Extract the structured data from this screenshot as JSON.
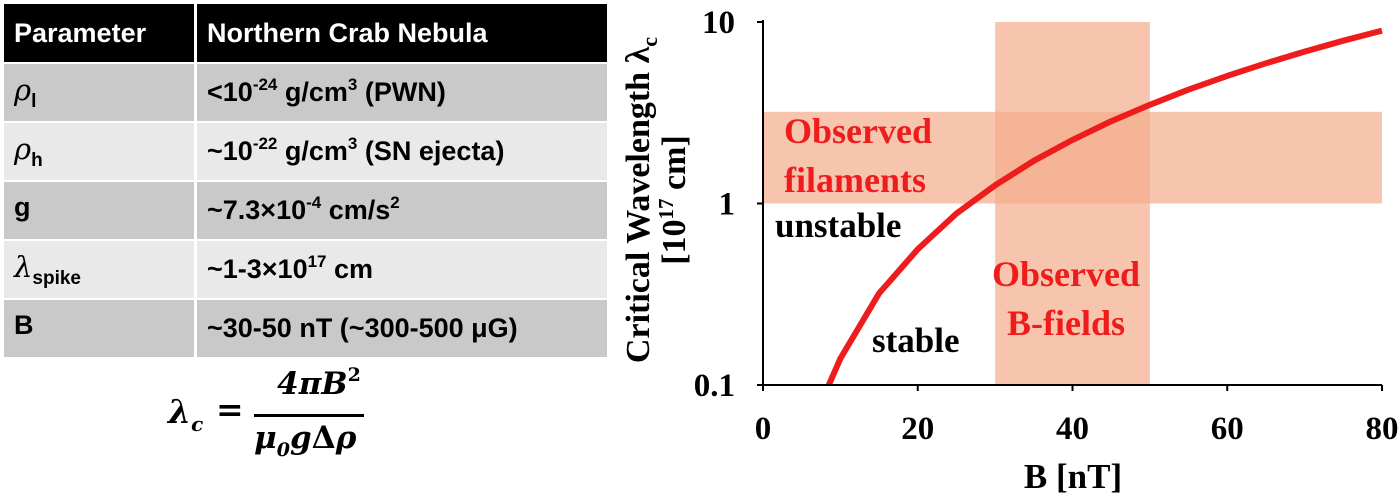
{
  "table": {
    "headers": [
      "Parameter",
      "Northern Crab Nebula"
    ],
    "rows": [
      {
        "symbol": "ρ",
        "subscript": "l",
        "value_prefix": "<10",
        "value_exp": "-24",
        "value_mid": " g/cm",
        "value_exp2": "3",
        "value_suffix": " (PWN)"
      },
      {
        "symbol": "ρ",
        "subscript": "h",
        "value_prefix": "~10",
        "value_exp": "-22",
        "value_mid": " g/cm",
        "value_exp2": "3",
        "value_suffix": " (SN ejecta)"
      },
      {
        "symbol": "g",
        "subscript": "",
        "value_prefix": "~7.3×10",
        "value_exp": "-4",
        "value_mid": " cm/s",
        "value_exp2": "2",
        "value_suffix": ""
      },
      {
        "symbol": "λ",
        "subscript": "spike",
        "value_prefix": "~1-3×10",
        "value_exp": "17",
        "value_mid": " cm",
        "value_exp2": "",
        "value_suffix": ""
      },
      {
        "symbol": "B",
        "subscript": "",
        "value_prefix": "~30-50 nT (~300-500 μG)",
        "value_exp": "",
        "value_mid": "",
        "value_exp2": "",
        "value_suffix": ""
      }
    ]
  },
  "formula": {
    "lhs": "λ",
    "lhs_sub": "c",
    "equals": "=",
    "numerator": "4πB",
    "numerator_exp": "2",
    "denominator_a": "μ",
    "denominator_sub": "0",
    "denominator_b": "g",
    "denominator_delta": "Δ",
    "denominator_c": "ρ"
  },
  "chart_data": {
    "type": "line",
    "xlabel": "B [nT]",
    "ylabel_line1": "Critical Wavelength λ",
    "ylabel_sub": "c",
    "ylabel_line2_prefix": "[10",
    "ylabel_line2_exp": "17",
    "ylabel_line2_suffix": " cm]",
    "xlim": [
      0,
      80
    ],
    "ylim": [
      0.1,
      10
    ],
    "yscale": "log",
    "xticks": [
      0,
      20,
      40,
      60,
      80
    ],
    "xtick_labels": [
      "0",
      "20",
      "40",
      "60",
      "80"
    ],
    "yticks": [
      0.1,
      1,
      10
    ],
    "ytick_labels": [
      "0.1",
      "1",
      "10"
    ],
    "grid": false,
    "series": [
      {
        "color": "#ee1c1c",
        "x": [
          8.5,
          10,
          15,
          20,
          25,
          30,
          35,
          40,
          45,
          50,
          55,
          60,
          65,
          70,
          75,
          80
        ],
        "y": [
          0.1,
          0.14,
          0.32,
          0.56,
          0.88,
          1.26,
          1.72,
          2.24,
          2.84,
          3.5,
          4.24,
          5.05,
          5.92,
          6.87,
          7.89,
          8.97
        ]
      }
    ],
    "bands": [
      {
        "label_lines": [
          "Observed",
          "filaments"
        ],
        "axis": "y",
        "range": [
          1,
          3.2
        ],
        "color": "#f4ad8e"
      },
      {
        "label_lines": [
          "Observed",
          "B-fields"
        ],
        "axis": "x",
        "range": [
          30,
          50
        ],
        "color": "#f4ad8e"
      }
    ],
    "annotations": [
      "unstable",
      "stable"
    ],
    "label_color": "#ee1c1c"
  }
}
